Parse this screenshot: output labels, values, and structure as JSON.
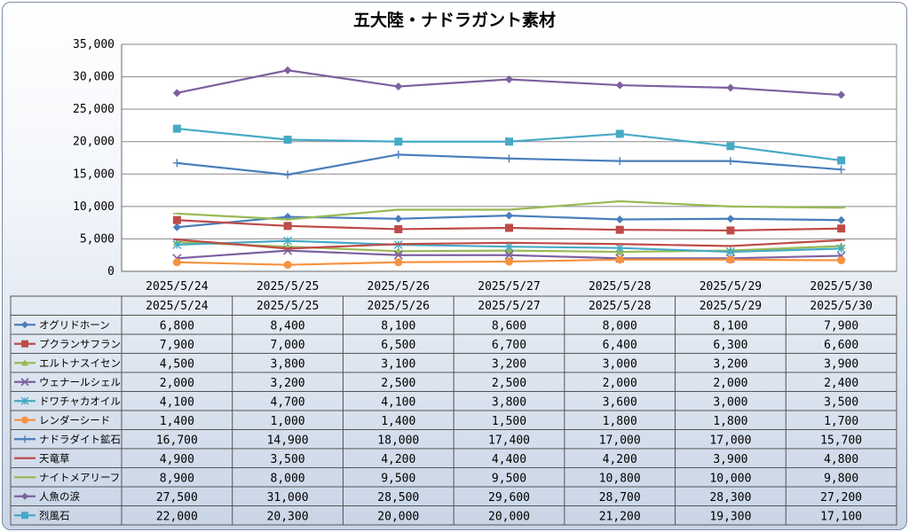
{
  "chart_data": {
    "type": "line",
    "title": "五大陸・ナドラガント素材",
    "categories": [
      "2025/5/24",
      "2025/5/25",
      "2025/5/26",
      "2025/5/27",
      "2025/5/28",
      "2025/5/29",
      "2025/5/30"
    ],
    "ylim": [
      0,
      35000
    ],
    "yticks": [
      0,
      5000,
      10000,
      15000,
      20000,
      25000,
      30000,
      35000
    ],
    "ytick_labels": [
      "0",
      "5,000",
      "10,000",
      "15,000",
      "20,000",
      "25,000",
      "30,000",
      "35,000"
    ],
    "grid": true,
    "legend": "data-table",
    "series": [
      {
        "name": "オグリドホーン",
        "color": "#4a7ebb",
        "marker": "diamond",
        "values": [
          6800,
          8400,
          8100,
          8600,
          8000,
          8100,
          7900
        ],
        "labels": [
          "6,800",
          "8,400",
          "8,100",
          "8,600",
          "8,000",
          "8,100",
          "7,900"
        ]
      },
      {
        "name": "プクランサフラン",
        "color": "#be4b48",
        "marker": "square",
        "values": [
          7900,
          7000,
          6500,
          6700,
          6400,
          6300,
          6600
        ],
        "labels": [
          "7,900",
          "7,000",
          "6,500",
          "6,700",
          "6,400",
          "6,300",
          "6,600"
        ]
      },
      {
        "name": "エルトナスイセン",
        "color": "#98b954",
        "marker": "triangle",
        "values": [
          4500,
          3800,
          3100,
          3200,
          3000,
          3200,
          3900
        ],
        "labels": [
          "4,500",
          "3,800",
          "3,100",
          "3,200",
          "3,000",
          "3,200",
          "3,900"
        ]
      },
      {
        "name": "ウェナールシェル",
        "color": "#7d60a0",
        "marker": "x",
        "values": [
          2000,
          3200,
          2500,
          2500,
          2000,
          2000,
          2400
        ],
        "labels": [
          "2,000",
          "3,200",
          "2,500",
          "2,500",
          "2,000",
          "2,000",
          "2,400"
        ]
      },
      {
        "name": "ドワチャカオイル",
        "color": "#46aac5",
        "marker": "star",
        "values": [
          4100,
          4700,
          4100,
          3800,
          3600,
          3000,
          3500
        ],
        "labels": [
          "4,100",
          "4,700",
          "4,100",
          "3,800",
          "3,600",
          "3,000",
          "3,500"
        ]
      },
      {
        "name": "レンダーシード",
        "color": "#f69240",
        "marker": "circle",
        "values": [
          1400,
          1000,
          1400,
          1500,
          1800,
          1800,
          1700
        ],
        "labels": [
          "1,400",
          "1,000",
          "1,400",
          "1,500",
          "1,800",
          "1,800",
          "1,700"
        ]
      },
      {
        "name": "ナドラダイト鉱石",
        "color": "#4a7ebb",
        "marker": "plus",
        "values": [
          16700,
          14900,
          18000,
          17400,
          17000,
          17000,
          15700
        ],
        "labels": [
          "16,700",
          "14,900",
          "18,000",
          "17,400",
          "17,000",
          "17,000",
          "15,700"
        ]
      },
      {
        "name": "天竜草",
        "color": "#be4b48",
        "marker": "dash",
        "values": [
          4900,
          3500,
          4200,
          4400,
          4200,
          3900,
          4800
        ],
        "labels": [
          "4,900",
          "3,500",
          "4,200",
          "4,400",
          "4,200",
          "3,900",
          "4,800"
        ]
      },
      {
        "name": "ナイトメアリーフ",
        "color": "#98b954",
        "marker": "dash",
        "values": [
          8900,
          8000,
          9500,
          9500,
          10800,
          10000,
          9800
        ],
        "labels": [
          "8,900",
          "8,000",
          "9,500",
          "9,500",
          "10,800",
          "10,000",
          "9,800"
        ]
      },
      {
        "name": "人魚の涙",
        "color": "#7d60a0",
        "marker": "diamond",
        "values": [
          27500,
          31000,
          28500,
          29600,
          28700,
          28300,
          27200
        ],
        "labels": [
          "27,500",
          "31,000",
          "28,500",
          "29,600",
          "28,700",
          "28,300",
          "27,200"
        ]
      },
      {
        "name": "烈風石",
        "color": "#46aac5",
        "marker": "square",
        "values": [
          22000,
          20300,
          20000,
          20000,
          21200,
          19300,
          17100
        ],
        "labels": [
          "22,000",
          "20,300",
          "20,000",
          "20,000",
          "21,200",
          "19,300",
          "17,100"
        ]
      }
    ]
  }
}
